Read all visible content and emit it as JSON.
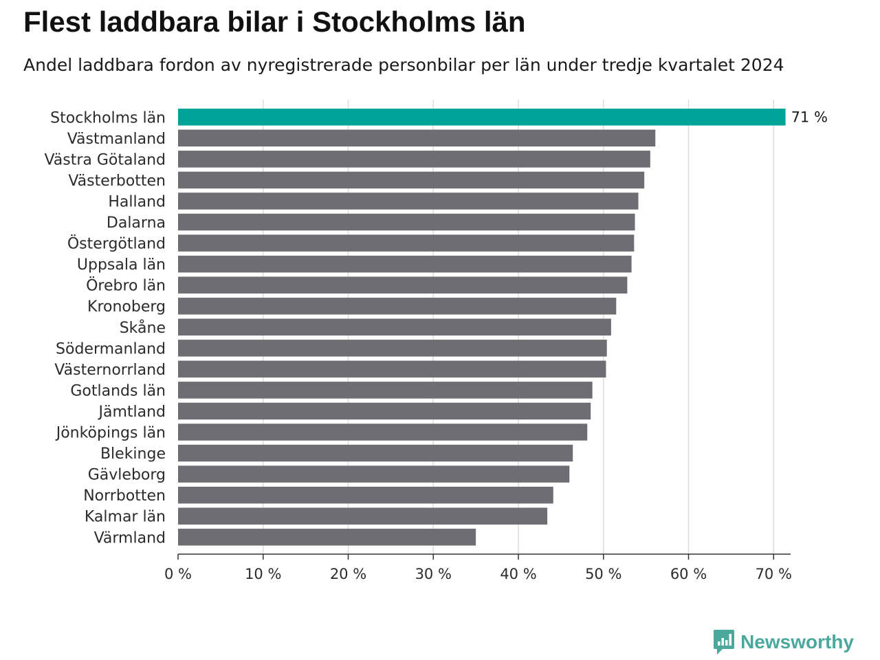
{
  "header": {
    "title": "Flest laddbara bilar i Stockholms län",
    "subtitle": "Andel laddbara fordon av nyregistrerade personbilar per län under tredje kvartalet 2024"
  },
  "brand": {
    "name": "Newsworthy",
    "color": "#4aa89c"
  },
  "colors": {
    "highlight": "#00a398",
    "bar": "#6e6d73",
    "grid": "#dcdcdc",
    "axis": "#333333"
  },
  "chart_data": {
    "type": "bar",
    "orientation": "horizontal",
    "title": "Flest laddbara bilar i Stockholms län",
    "subtitle": "Andel laddbara fordon av nyregistrerade personbilar per län under tredje kvartalet 2024",
    "xlabel": "",
    "ylabel": "",
    "xlim": [
      0,
      72
    ],
    "ticks": [
      0,
      10,
      20,
      30,
      40,
      50,
      60,
      70
    ],
    "tick_labels": [
      "0 %",
      "10 %",
      "20 %",
      "30 %",
      "40 %",
      "50 %",
      "60 %",
      "70 %"
    ],
    "grid": true,
    "highlight_index": 0,
    "value_label": "71 %",
    "categories": [
      "Stockholms län",
      "Västmanland",
      "Västra Götaland",
      "Västerbotten",
      "Halland",
      "Dalarna",
      "Östergötland",
      "Uppsala län",
      "Örebro län",
      "Kronoberg",
      "Skåne",
      "Södermanland",
      "Västernorrland",
      "Gotlands län",
      "Jämtland",
      "Jönköpings län",
      "Blekinge",
      "Gävleborg",
      "Norrbotten",
      "Kalmar län",
      "Värmland"
    ],
    "values": [
      71.4,
      56.1,
      55.5,
      54.8,
      54.1,
      53.7,
      53.6,
      53.3,
      52.8,
      51.5,
      50.9,
      50.4,
      50.3,
      48.7,
      48.5,
      48.1,
      46.4,
      46.0,
      44.1,
      43.4,
      35.0
    ]
  }
}
